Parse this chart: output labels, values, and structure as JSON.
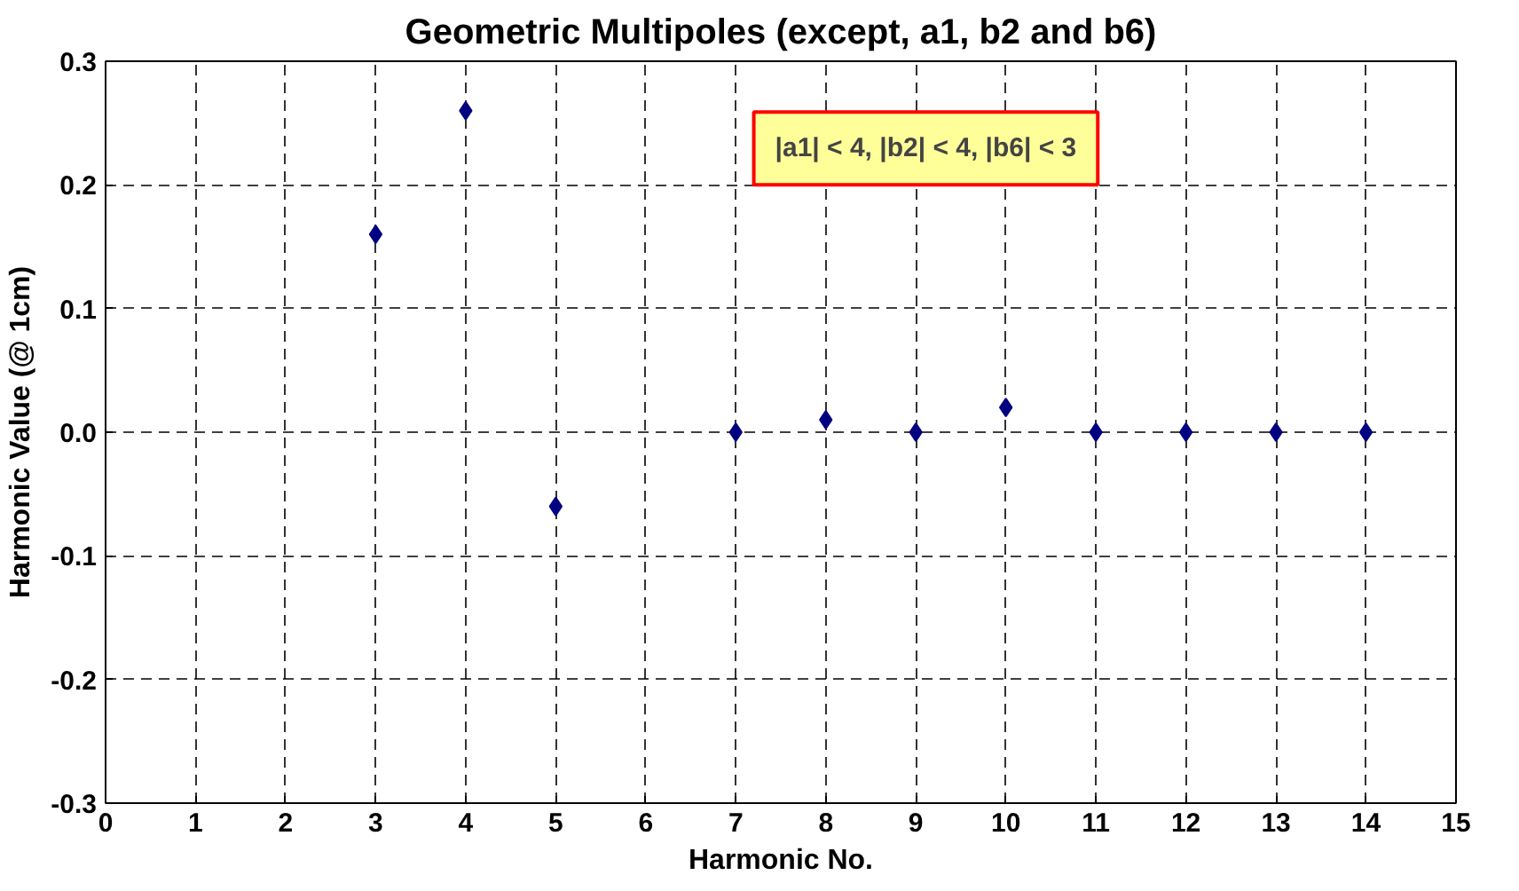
{
  "chart_data": {
    "type": "scatter",
    "title": "Geometric Multipoles (except, a1, b2 and b6)",
    "xlabel": "Harmonic No.",
    "ylabel": "Harmonic Value (@ 1cm)",
    "annotations": [
      "|a1| < 4, |b2| < 4, |b6| < 3"
    ],
    "x": [
      3,
      4,
      5,
      7,
      8,
      9,
      10,
      11,
      12,
      13,
      14
    ],
    "series": [
      {
        "color": "#000080",
        "values": [
          0.16,
          0.26,
          -0.06,
          0.0,
          0.01,
          0.0,
          0.02,
          0.0,
          0.0,
          0.0,
          0.0
        ]
      }
    ],
    "xlim": [
      0,
      15
    ],
    "xticks": [
      0,
      1,
      2,
      3,
      4,
      5,
      6,
      7,
      8,
      9,
      10,
      11,
      12,
      13,
      14,
      15
    ],
    "ylim": [
      -0.3,
      0.3
    ],
    "yticks": [
      {
        "value": -0.3,
        "label": "-0.3"
      },
      {
        "value": -0.2,
        "label": "-0.2"
      },
      {
        "value": -0.1,
        "label": "-0.1"
      },
      {
        "value": 0,
        "label": "0.0"
      },
      {
        "value": 0.1,
        "label": "0.1"
      },
      {
        "value": 0.2,
        "label": "0.2"
      },
      {
        "value": 0.3,
        "label": "0.3"
      }
    ],
    "grid": true,
    "marker": "diamond"
  }
}
